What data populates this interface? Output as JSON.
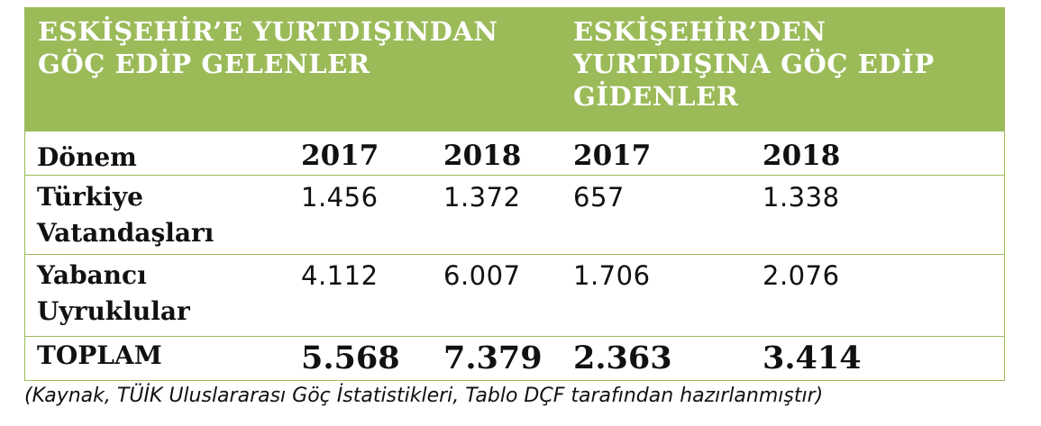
{
  "header": {
    "left_title": "ESKİŞEHİR’E YURTDIŞINDAN\nGÖÇ EDİP GELENLER",
    "right_title": "ESKİŞEHİR’DEN\nYURTDIŞINA GÖÇ EDİP\nGİDENLER"
  },
  "columns": {
    "period_label": "Dönem",
    "years": [
      "2017",
      "2018",
      "2017",
      "2018"
    ]
  },
  "rows": [
    {
      "label": "Türkiye\nVatandaşları",
      "values": [
        "1.456",
        "1.372",
        "657",
        "1.338"
      ]
    },
    {
      "label": "Yabancı\nUyruklular",
      "values": [
        "4.112",
        "6.007",
        "1.706",
        "2.076"
      ]
    }
  ],
  "total": {
    "label": "TOPLAM",
    "values": [
      "5.568",
      "7.379",
      "2.363",
      "3.414"
    ]
  },
  "caption": "(Kaynak, TÜİK Uluslararası Göç İstatistikleri, Tablo DÇF tarafından hazırlanmıştır)",
  "colors": {
    "header_background": "#9bbb59",
    "header_text": "#ffffff",
    "border": "#9bbb59"
  }
}
